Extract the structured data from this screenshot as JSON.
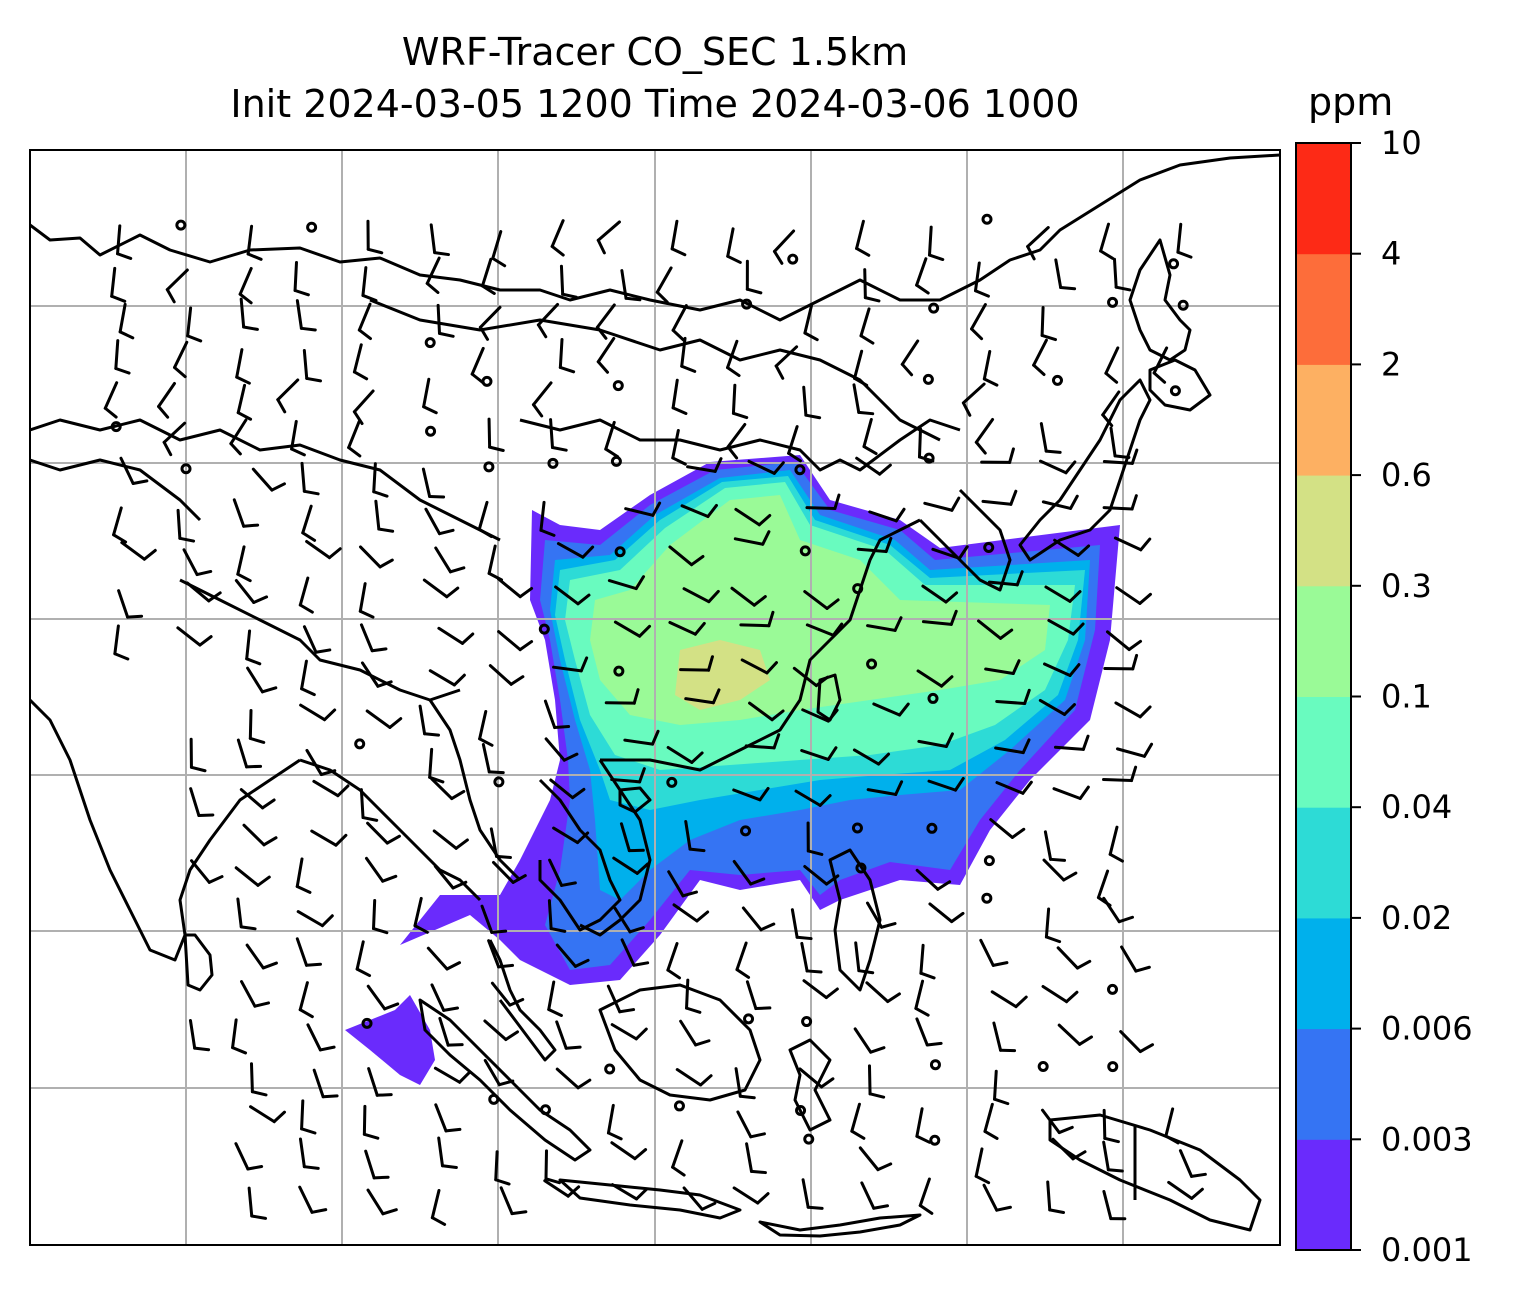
{
  "title": {
    "line1": "WRF-Tracer CO_SEC 1.5km",
    "line2": "Init 2024-03-05 1200 Time 2024-03-06 1000"
  },
  "colorbar": {
    "units": "ppm",
    "levels": [
      "0.001",
      "0.003",
      "0.006",
      "0.02",
      "0.04",
      "0.1",
      "0.3",
      "0.6",
      "2",
      "4",
      "10"
    ],
    "colors": [
      "#6a2bfc",
      "#3574f3",
      "#00b0ec",
      "#2ddbd6",
      "#69fbbf",
      "#9afa97",
      "#d3e185",
      "#fdb062",
      "#fd6d3a",
      "#fd2a16"
    ]
  },
  "map": {
    "gridlines": true,
    "coastline_color": "#000000",
    "grid_color": "#b0b0b0"
  }
}
